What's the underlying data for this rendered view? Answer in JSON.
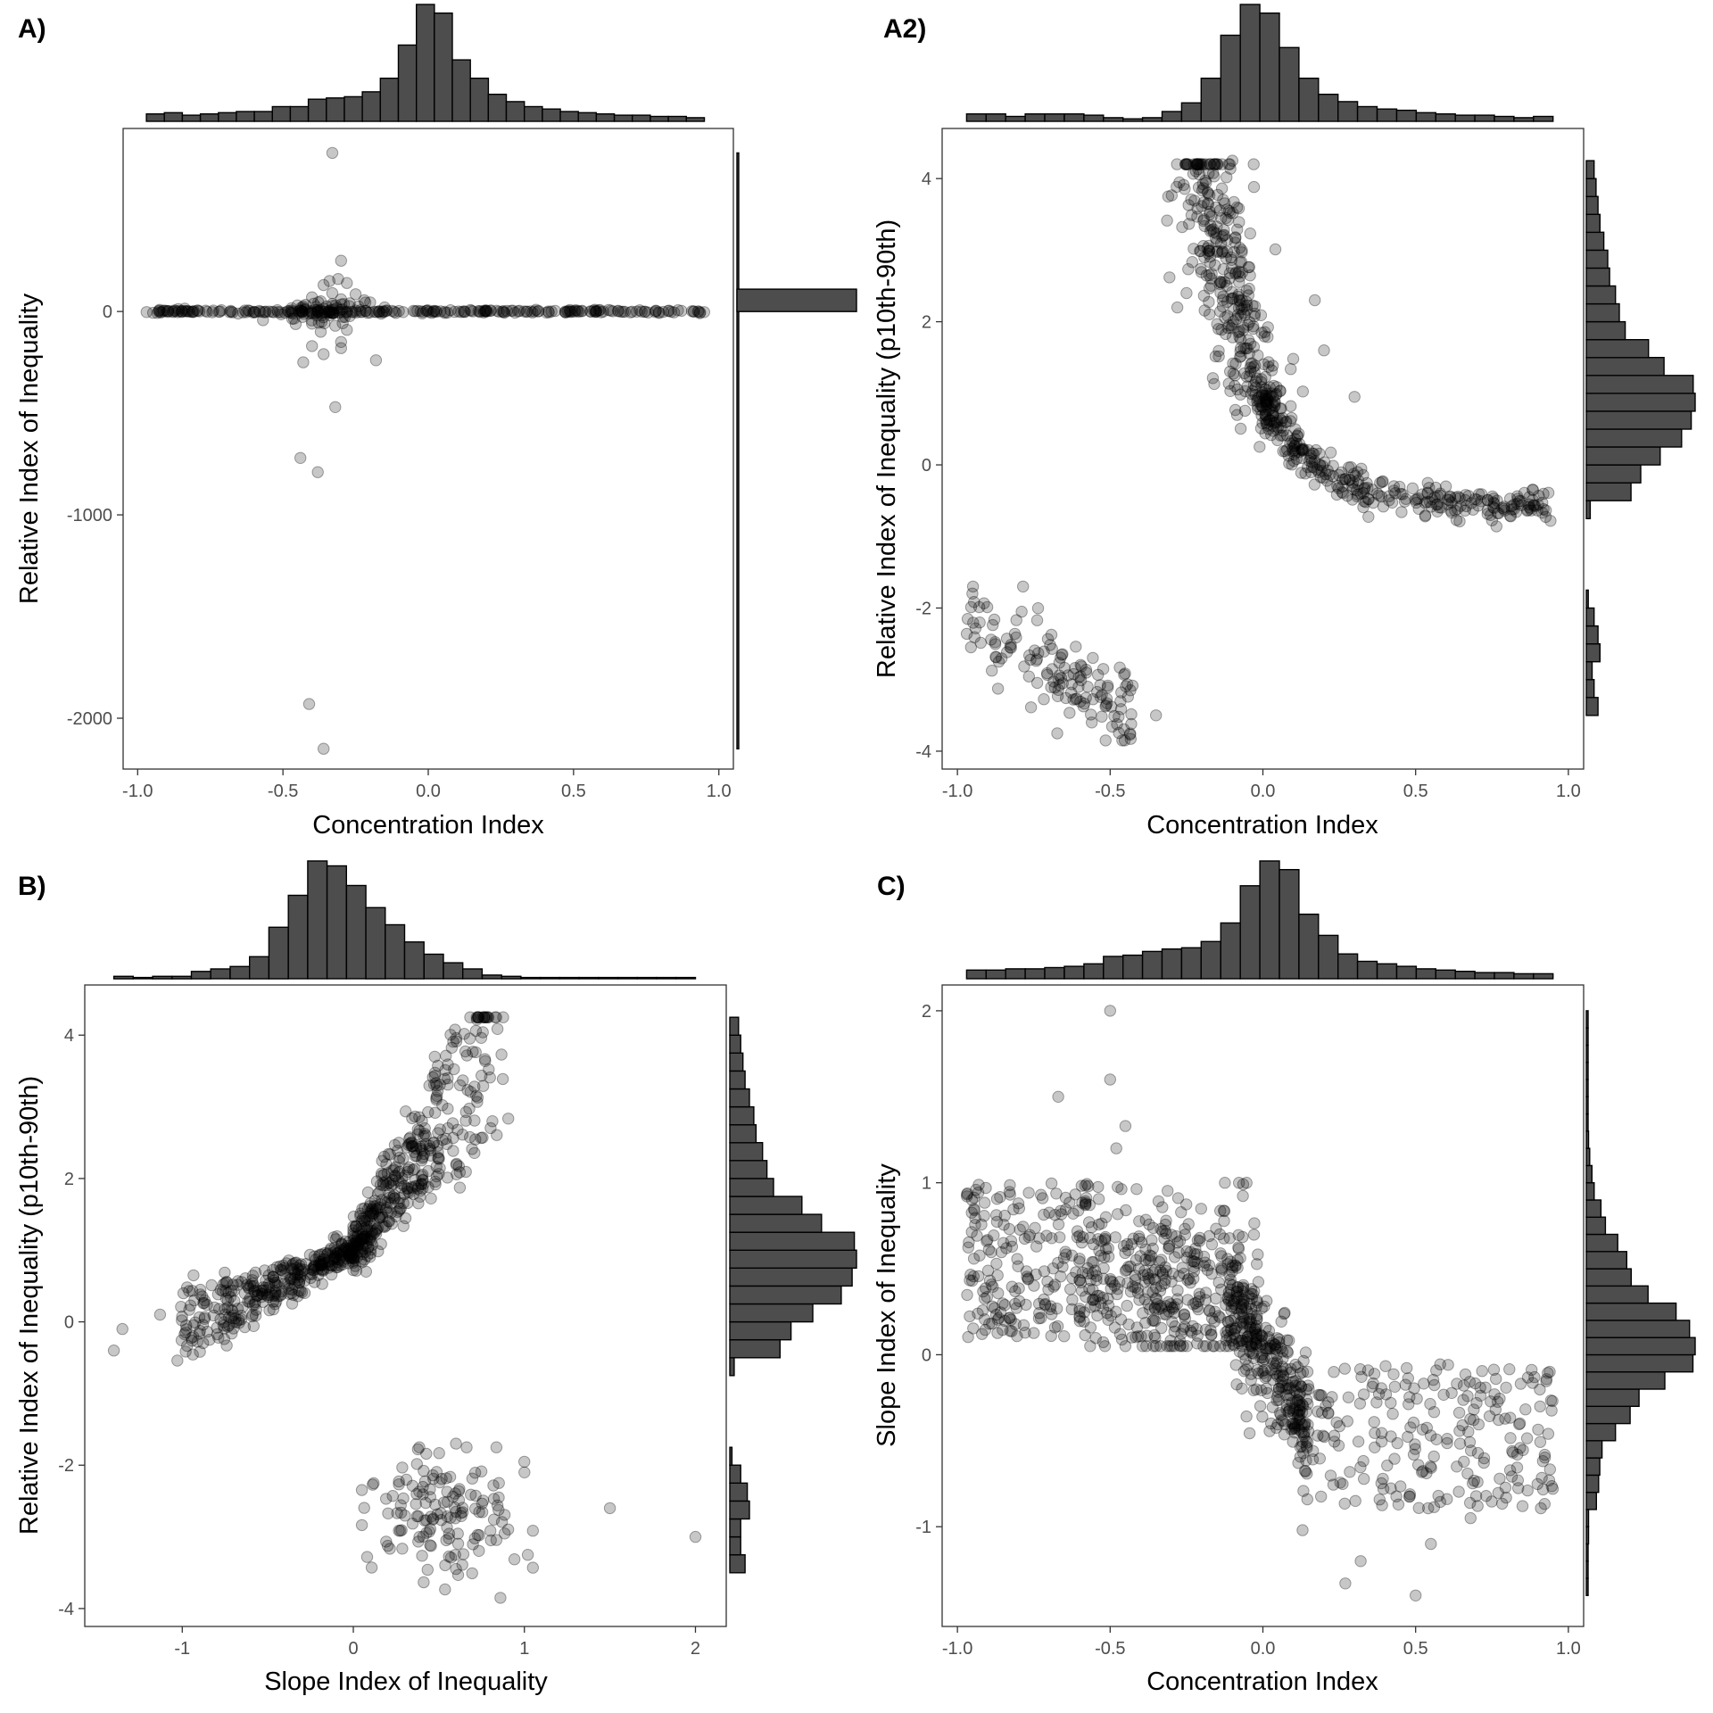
{
  "style": {
    "bar_fill": "#4d4d4d",
    "bar_stroke": "#000000",
    "point_color": "#000000",
    "point_opacity": 0.22,
    "axis_color": "#333333",
    "tick_color": "#4d4d4d"
  },
  "chart_data": [
    {
      "id": "A",
      "panel_label": "A)",
      "type": "scatter",
      "xlabel": "Concentration Index",
      "ylabel": "Relative Index of Inequality",
      "xlim": [
        -1.05,
        1.05
      ],
      "ylim": [
        -2250,
        900
      ],
      "xticks": [
        -1.0,
        -0.5,
        0.0,
        0.5,
        1.0
      ],
      "xtick_labels": [
        "-1.0",
        "-0.5",
        "0.0",
        "0.5",
        "1.0"
      ],
      "yticks": [
        -2000,
        -1000,
        0
      ],
      "ytick_labels": [
        "-2000",
        "-1000",
        "0"
      ],
      "grid": false,
      "marginal_x_histogram": [
        6,
        7,
        5,
        6,
        7,
        8,
        8,
        12,
        12,
        18,
        19,
        20,
        24,
        35,
        62,
        95,
        88,
        50,
        35,
        22,
        16,
        12,
        10,
        8,
        7,
        6,
        5,
        5,
        4,
        4,
        3
      ],
      "marginal_x_range": [
        -0.97,
        0.95
      ],
      "marginal_y_histogram": [
        {
          "from": -2150,
          "to": 780,
          "count": 1
        },
        {
          "from": 0,
          "to": 110,
          "count": 96
        }
      ],
      "points": [
        [
          -0.33,
          780
        ],
        [
          -0.3,
          250
        ],
        [
          -0.31,
          160
        ],
        [
          -0.34,
          150
        ],
        [
          -0.28,
          140
        ],
        [
          -0.36,
          130
        ],
        [
          -0.33,
          90
        ],
        [
          -0.25,
          85
        ],
        [
          -0.4,
          70
        ],
        [
          -0.3,
          60
        ],
        [
          -0.22,
          55
        ],
        [
          -0.37,
          50
        ],
        [
          -0.27,
          40
        ],
        [
          -0.2,
          45
        ],
        [
          -0.45,
          30
        ],
        [
          -0.35,
          25
        ],
        [
          -0.24,
          25
        ],
        [
          -0.15,
          20
        ],
        [
          -0.4,
          -60
        ],
        [
          -0.32,
          -70
        ],
        [
          -0.28,
          -90
        ],
        [
          -0.37,
          -100
        ],
        [
          -0.3,
          -150
        ],
        [
          -0.4,
          -170
        ],
        [
          -0.3,
          -180
        ],
        [
          -0.43,
          -250
        ],
        [
          -0.36,
          -210
        ],
        [
          -0.18,
          -240
        ],
        [
          -0.32,
          -470
        ],
        [
          -0.44,
          -720
        ],
        [
          -0.38,
          -790
        ],
        [
          -0.41,
          -1930
        ],
        [
          -0.36,
          -2150
        ]
      ],
      "band": {
        "x_from": -0.97,
        "x_to": 0.95,
        "y": 0
      }
    },
    {
      "id": "A2",
      "panel_label": "A2)",
      "type": "scatter",
      "xlabel": "Concentration Index",
      "ylabel": "Relative Index of Inequality (p10th-90th)",
      "xlim": [
        -1.05,
        1.05
      ],
      "ylim": [
        -4.25,
        4.7
      ],
      "xticks": [
        -1.0,
        -0.5,
        0.0,
        0.5,
        1.0
      ],
      "xtick_labels": [
        "-1.0",
        "-0.5",
        "0.0",
        "0.5",
        "1.0"
      ],
      "yticks": [
        -4,
        -2,
        0,
        2,
        4
      ],
      "ytick_labels": [
        "-4",
        "-2",
        "0",
        "2",
        "4"
      ],
      "grid": false,
      "marginal_x_histogram": [
        6,
        6,
        4,
        6,
        6,
        6,
        5,
        3,
        2,
        3,
        8,
        15,
        35,
        70,
        95,
        88,
        60,
        35,
        22,
        16,
        12,
        10,
        9,
        7,
        6,
        5,
        5,
        4,
        3,
        4
      ],
      "marginal_x_range": [
        -0.97,
        0.95
      ],
      "marginal_y_histogram": [
        {
          "from": -3.5,
          "to": -3.25,
          "count": 6
        },
        {
          "from": -3.25,
          "to": -3.0,
          "count": 4
        },
        {
          "from": -3.0,
          "to": -2.75,
          "count": 3
        },
        {
          "from": -2.75,
          "to": -2.5,
          "count": 7
        },
        {
          "from": -2.5,
          "to": -2.25,
          "count": 6
        },
        {
          "from": -2.25,
          "to": -2.0,
          "count": 4
        },
        {
          "from": -2.0,
          "to": -1.75,
          "count": 1
        },
        {
          "from": -0.75,
          "to": -0.5,
          "count": 2
        },
        {
          "from": -0.5,
          "to": -0.25,
          "count": 23
        },
        {
          "from": -0.25,
          "to": 0.0,
          "count": 28
        },
        {
          "from": 0.0,
          "to": 0.25,
          "count": 38
        },
        {
          "from": 0.25,
          "to": 0.5,
          "count": 49
        },
        {
          "from": 0.5,
          "to": 0.75,
          "count": 54
        },
        {
          "from": 0.75,
          "to": 1.0,
          "count": 56
        },
        {
          "from": 1.0,
          "to": 1.25,
          "count": 55
        },
        {
          "from": 1.25,
          "to": 1.5,
          "count": 40
        },
        {
          "from": 1.5,
          "to": 1.75,
          "count": 32
        },
        {
          "from": 1.75,
          "to": 2.0,
          "count": 20
        },
        {
          "from": 2.0,
          "to": 2.25,
          "count": 17
        },
        {
          "from": 2.25,
          "to": 2.5,
          "count": 15
        },
        {
          "from": 2.5,
          "to": 2.75,
          "count": 12
        },
        {
          "from": 2.75,
          "to": 3.0,
          "count": 11
        },
        {
          "from": 3.0,
          "to": 3.25,
          "count": 9
        },
        {
          "from": 3.25,
          "to": 3.5,
          "count": 7
        },
        {
          "from": 3.5,
          "to": 3.75,
          "count": 6
        },
        {
          "from": 3.75,
          "to": 4.0,
          "count": 5
        },
        {
          "from": 4.0,
          "to": 4.25,
          "count": 4
        }
      ],
      "point_groups": [
        {
          "n": 320,
          "x": [
            -0.22,
            0.02
          ],
          "shape": "curve_a2_upper",
          "spread": 0.05
        },
        {
          "n": 320,
          "x": [
            0.0,
            0.95
          ],
          "shape": "curve_a2_tail",
          "spread": 0.08
        },
        {
          "n": 140,
          "x": [
            -0.97,
            -0.42
          ],
          "shape": "cluster_a2_lower",
          "spread": 0.3
        }
      ],
      "points": [
        [
          -0.31,
          3.75
        ],
        [
          -0.25,
          2.4
        ],
        [
          -0.28,
          2.2
        ],
        [
          0.17,
          2.3
        ],
        [
          0.2,
          1.6
        ],
        [
          0.3,
          0.95
        ],
        [
          -0.35,
          -3.5
        ],
        [
          -0.1,
          4.25
        ],
        [
          -0.03,
          4.2
        ]
      ]
    },
    {
      "id": "B",
      "panel_label": "B)",
      "type": "scatter",
      "xlabel": "Slope Index of Inequality",
      "ylabel": "Relative Index of Inequality (p10th-90th)",
      "xlim": [
        -1.57,
        2.18
      ],
      "ylim": [
        -4.25,
        4.7
      ],
      "xticks": [
        -1,
        0,
        1,
        2
      ],
      "xtick_labels": [
        "-1",
        "0",
        "1",
        "2"
      ],
      "yticks": [
        -4,
        -2,
        0,
        2,
        4
      ],
      "ytick_labels": [
        "-4",
        "-2",
        "0",
        "2",
        "4"
      ],
      "grid": false,
      "marginal_x_histogram": [
        2,
        1,
        2,
        2,
        6,
        8,
        10,
        18,
        42,
        68,
        96,
        92,
        76,
        58,
        44,
        30,
        20,
        13,
        8,
        3,
        2,
        1,
        1,
        1,
        1,
        1,
        1,
        1,
        1,
        1
      ],
      "marginal_x_range": [
        -1.4,
        2.0
      ],
      "marginal_y_histogram": [
        {
          "from": -3.5,
          "to": -3.25,
          "count": 7
        },
        {
          "from": -3.25,
          "to": -3.0,
          "count": 5
        },
        {
          "from": -3.0,
          "to": -2.75,
          "count": 5
        },
        {
          "from": -2.75,
          "to": -2.5,
          "count": 9
        },
        {
          "from": -2.5,
          "to": -2.25,
          "count": 8
        },
        {
          "from": -2.25,
          "to": -2.0,
          "count": 5
        },
        {
          "from": -2.0,
          "to": -1.75,
          "count": 1
        },
        {
          "from": -0.75,
          "to": -0.5,
          "count": 2
        },
        {
          "from": -0.5,
          "to": -0.25,
          "count": 23
        },
        {
          "from": -0.25,
          "to": 0.0,
          "count": 28
        },
        {
          "from": 0.0,
          "to": 0.25,
          "count": 38
        },
        {
          "from": 0.25,
          "to": 0.5,
          "count": 51
        },
        {
          "from": 0.5,
          "to": 0.75,
          "count": 56
        },
        {
          "from": 0.75,
          "to": 1.0,
          "count": 58
        },
        {
          "from": 1.0,
          "to": 1.25,
          "count": 57
        },
        {
          "from": 1.25,
          "to": 1.5,
          "count": 42
        },
        {
          "from": 1.5,
          "to": 1.75,
          "count": 33
        },
        {
          "from": 1.75,
          "to": 2.0,
          "count": 20
        },
        {
          "from": 2.0,
          "to": 2.25,
          "count": 17
        },
        {
          "from": 2.25,
          "to": 2.5,
          "count": 15
        },
        {
          "from": 2.5,
          "to": 2.75,
          "count": 12
        },
        {
          "from": 2.75,
          "to": 3.0,
          "count": 11
        },
        {
          "from": 3.0,
          "to": 3.25,
          "count": 9
        },
        {
          "from": 3.25,
          "to": 3.5,
          "count": 7
        },
        {
          "from": 3.5,
          "to": 3.75,
          "count": 6
        },
        {
          "from": 3.75,
          "to": 4.0,
          "count": 5
        },
        {
          "from": 4.0,
          "to": 4.25,
          "count": 4
        }
      ],
      "point_groups": [
        {
          "n": 380,
          "x": [
            0.0,
            0.9
          ],
          "shape": "wedge_b_upper",
          "spread": 0.3
        },
        {
          "n": 340,
          "x": [
            -1.1,
            0.0
          ],
          "shape": "wedge_b_lower",
          "spread": 0.3
        },
        {
          "n": 140,
          "x": [
            0.05,
            1.05
          ],
          "shape": "cluster_b_lower",
          "spread": 0.35
        }
      ],
      "points": [
        [
          -1.4,
          -0.4
        ],
        [
          -1.35,
          -0.1
        ],
        [
          -1.13,
          0.1
        ],
        [
          1.5,
          -2.6
        ],
        [
          2.0,
          -3.0
        ],
        [
          1.02,
          -3.25
        ],
        [
          0.86,
          -3.85
        ],
        [
          0.6,
          -1.7
        ],
        [
          1.0,
          -2.1
        ]
      ]
    },
    {
      "id": "C",
      "panel_label": "C)",
      "type": "scatter",
      "xlabel": "Concentration Index",
      "ylabel": "Slope Index of Inequality",
      "xlim": [
        -1.05,
        1.05
      ],
      "ylim": [
        -1.58,
        2.15
      ],
      "xticks": [
        -1.0,
        -0.5,
        0.0,
        0.5,
        1.0
      ],
      "xtick_labels": [
        "-1.0",
        "-0.5",
        "0.0",
        "0.5",
        "1.0"
      ],
      "yticks": [
        -1,
        0,
        1,
        2
      ],
      "ytick_labels": [
        "-1",
        "0",
        "1",
        "2"
      ],
      "grid": false,
      "marginal_x_histogram": [
        7,
        7,
        8,
        8,
        9,
        10,
        12,
        18,
        19,
        22,
        24,
        25,
        30,
        45,
        75,
        95,
        88,
        52,
        35,
        20,
        14,
        12,
        10,
        8,
        7,
        6,
        5,
        5,
        4,
        4
      ],
      "marginal_x_range": [
        -0.97,
        0.95
      ],
      "marginal_y_histogram": [
        {
          "from": -1.4,
          "to": -1.3,
          "count": 1
        },
        {
          "from": -1.3,
          "to": -1.2,
          "count": 1
        },
        {
          "from": -1.2,
          "to": -1.1,
          "count": 1
        },
        {
          "from": -1.1,
          "to": -1.0,
          "count": 2
        },
        {
          "from": -1.0,
          "to": -0.9,
          "count": 2
        },
        {
          "from": -0.9,
          "to": -0.8,
          "count": 9
        },
        {
          "from": -0.8,
          "to": -0.7,
          "count": 11
        },
        {
          "from": -0.7,
          "to": -0.6,
          "count": 12
        },
        {
          "from": -0.6,
          "to": -0.5,
          "count": 14
        },
        {
          "from": -0.5,
          "to": -0.4,
          "count": 26
        },
        {
          "from": -0.4,
          "to": -0.3,
          "count": 39
        },
        {
          "from": -0.3,
          "to": -0.2,
          "count": 47
        },
        {
          "from": -0.2,
          "to": -0.1,
          "count": 70
        },
        {
          "from": -0.1,
          "to": 0.0,
          "count": 95
        },
        {
          "from": 0.0,
          "to": 0.1,
          "count": 97
        },
        {
          "from": 0.1,
          "to": 0.2,
          "count": 92
        },
        {
          "from": 0.2,
          "to": 0.3,
          "count": 80
        },
        {
          "from": 0.3,
          "to": 0.4,
          "count": 55
        },
        {
          "from": 0.4,
          "to": 0.5,
          "count": 40
        },
        {
          "from": 0.5,
          "to": 0.6,
          "count": 36
        },
        {
          "from": 0.6,
          "to": 0.7,
          "count": 28
        },
        {
          "from": 0.7,
          "to": 0.8,
          "count": 17
        },
        {
          "from": 0.8,
          "to": 0.9,
          "count": 13
        },
        {
          "from": 0.9,
          "to": 1.0,
          "count": 7
        },
        {
          "from": 1.0,
          "to": 1.1,
          "count": 5
        },
        {
          "from": 1.1,
          "to": 1.2,
          "count": 3
        },
        {
          "from": 1.2,
          "to": 1.3,
          "count": 2
        },
        {
          "from": 1.3,
          "to": 1.4,
          "count": 1
        },
        {
          "from": 1.4,
          "to": 1.5,
          "count": 1
        },
        {
          "from": 1.5,
          "to": 1.6,
          "count": 1
        },
        {
          "from": 1.6,
          "to": 1.7,
          "count": 1
        },
        {
          "from": 1.7,
          "to": 1.8,
          "count": 1
        },
        {
          "from": 1.8,
          "to": 1.9,
          "count": 1
        },
        {
          "from": 1.9,
          "to": 2.0,
          "count": 1
        }
      ],
      "point_groups": [
        {
          "n": 330,
          "x": [
            -0.55,
            -0.05
          ],
          "shape": "blob_c_upper",
          "spread": 0.3
        },
        {
          "n": 220,
          "x": [
            -0.97,
            -0.5
          ],
          "shape": "spread_c_left",
          "spread": 0.3
        },
        {
          "n": 300,
          "x": [
            -0.12,
            0.15
          ],
          "shape": "steep_c_center",
          "spread": 0.18
        },
        {
          "n": 230,
          "x": [
            0.1,
            0.95
          ],
          "shape": "spread_c_right",
          "spread": 0.3
        }
      ],
      "points": [
        [
          -0.5,
          2.0
        ],
        [
          -0.5,
          1.6
        ],
        [
          -0.67,
          1.5
        ],
        [
          -0.48,
          1.2
        ],
        [
          -0.45,
          1.33
        ],
        [
          0.5,
          -1.4
        ],
        [
          0.27,
          -1.33
        ],
        [
          0.55,
          -1.1
        ],
        [
          0.32,
          -1.2
        ],
        [
          0.13,
          -1.02
        ],
        [
          0.68,
          -0.95
        ],
        [
          0.85,
          -0.88
        ]
      ]
    }
  ]
}
